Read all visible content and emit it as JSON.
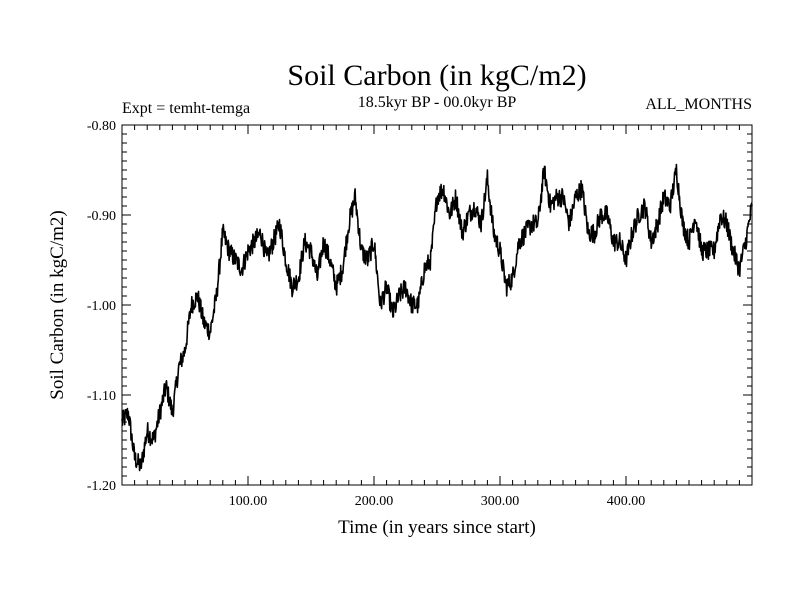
{
  "chart_data": {
    "type": "line",
    "title": "Soil Carbon (in kgC/m2)",
    "subtitle_left": "Expt = temht-temga",
    "subtitle_center": "18.5kyr BP - 00.0kyr BP",
    "subtitle_right": "ALL_MONTHS",
    "xlabel": "Time (in years since start)",
    "ylabel": "Soil Carbon (in kgC/m2)",
    "xlim": [
      0,
      500
    ],
    "ylim": [
      -1.2,
      -0.8
    ],
    "xticks": [
      100,
      200,
      300,
      400
    ],
    "xtick_labels": [
      "100.00",
      "200.00",
      "300.00",
      "400.00"
    ],
    "yticks": [
      -1.2,
      -1.1,
      -1.0,
      -0.9,
      -0.8
    ],
    "ytick_labels": [
      "-1.20",
      "-1.10",
      "-1.00",
      "-0.90",
      "-0.80"
    ],
    "series": [
      {
        "name": "Soil Carbon",
        "x": [
          0,
          5,
          10,
          15,
          20,
          25,
          30,
          35,
          40,
          45,
          50,
          55,
          60,
          65,
          70,
          75,
          80,
          85,
          90,
          95,
          100,
          105,
          110,
          115,
          120,
          125,
          130,
          135,
          140,
          145,
          150,
          155,
          160,
          165,
          170,
          175,
          180,
          185,
          190,
          195,
          200,
          205,
          210,
          215,
          220,
          225,
          230,
          235,
          240,
          245,
          250,
          255,
          260,
          265,
          270,
          275,
          280,
          285,
          290,
          295,
          300,
          305,
          310,
          315,
          320,
          325,
          330,
          335,
          340,
          345,
          350,
          355,
          360,
          365,
          370,
          375,
          380,
          385,
          390,
          395,
          400,
          405,
          410,
          415,
          420,
          425,
          430,
          435,
          440,
          445,
          450,
          455,
          460,
          465,
          470,
          475,
          480,
          485,
          490,
          495,
          500
        ],
        "values": [
          -1.13,
          -1.12,
          -1.17,
          -1.18,
          -1.14,
          -1.15,
          -1.12,
          -1.09,
          -1.12,
          -1.07,
          -1.05,
          -1.0,
          -0.99,
          -1.02,
          -1.03,
          -0.99,
          -0.92,
          -0.94,
          -0.95,
          -0.96,
          -0.94,
          -0.93,
          -0.92,
          -0.95,
          -0.93,
          -0.91,
          -0.95,
          -0.98,
          -0.97,
          -0.93,
          -0.94,
          -0.97,
          -0.93,
          -0.95,
          -0.98,
          -0.96,
          -0.91,
          -0.88,
          -0.94,
          -0.95,
          -0.93,
          -1.0,
          -0.98,
          -1.01,
          -0.99,
          -0.98,
          -1.0,
          -1.0,
          -0.96,
          -0.95,
          -0.88,
          -0.87,
          -0.9,
          -0.88,
          -0.92,
          -0.9,
          -0.89,
          -0.91,
          -0.86,
          -0.92,
          -0.94,
          -0.98,
          -0.97,
          -0.93,
          -0.92,
          -0.91,
          -0.91,
          -0.85,
          -0.89,
          -0.88,
          -0.88,
          -0.91,
          -0.88,
          -0.87,
          -0.92,
          -0.92,
          -0.9,
          -0.9,
          -0.93,
          -0.93,
          -0.95,
          -0.92,
          -0.9,
          -0.89,
          -0.93,
          -0.91,
          -0.88,
          -0.89,
          -0.85,
          -0.91,
          -0.93,
          -0.9,
          -0.94,
          -0.94,
          -0.94,
          -0.9,
          -0.91,
          -0.94,
          -0.96,
          -0.93,
          -0.89
        ]
      }
    ]
  }
}
